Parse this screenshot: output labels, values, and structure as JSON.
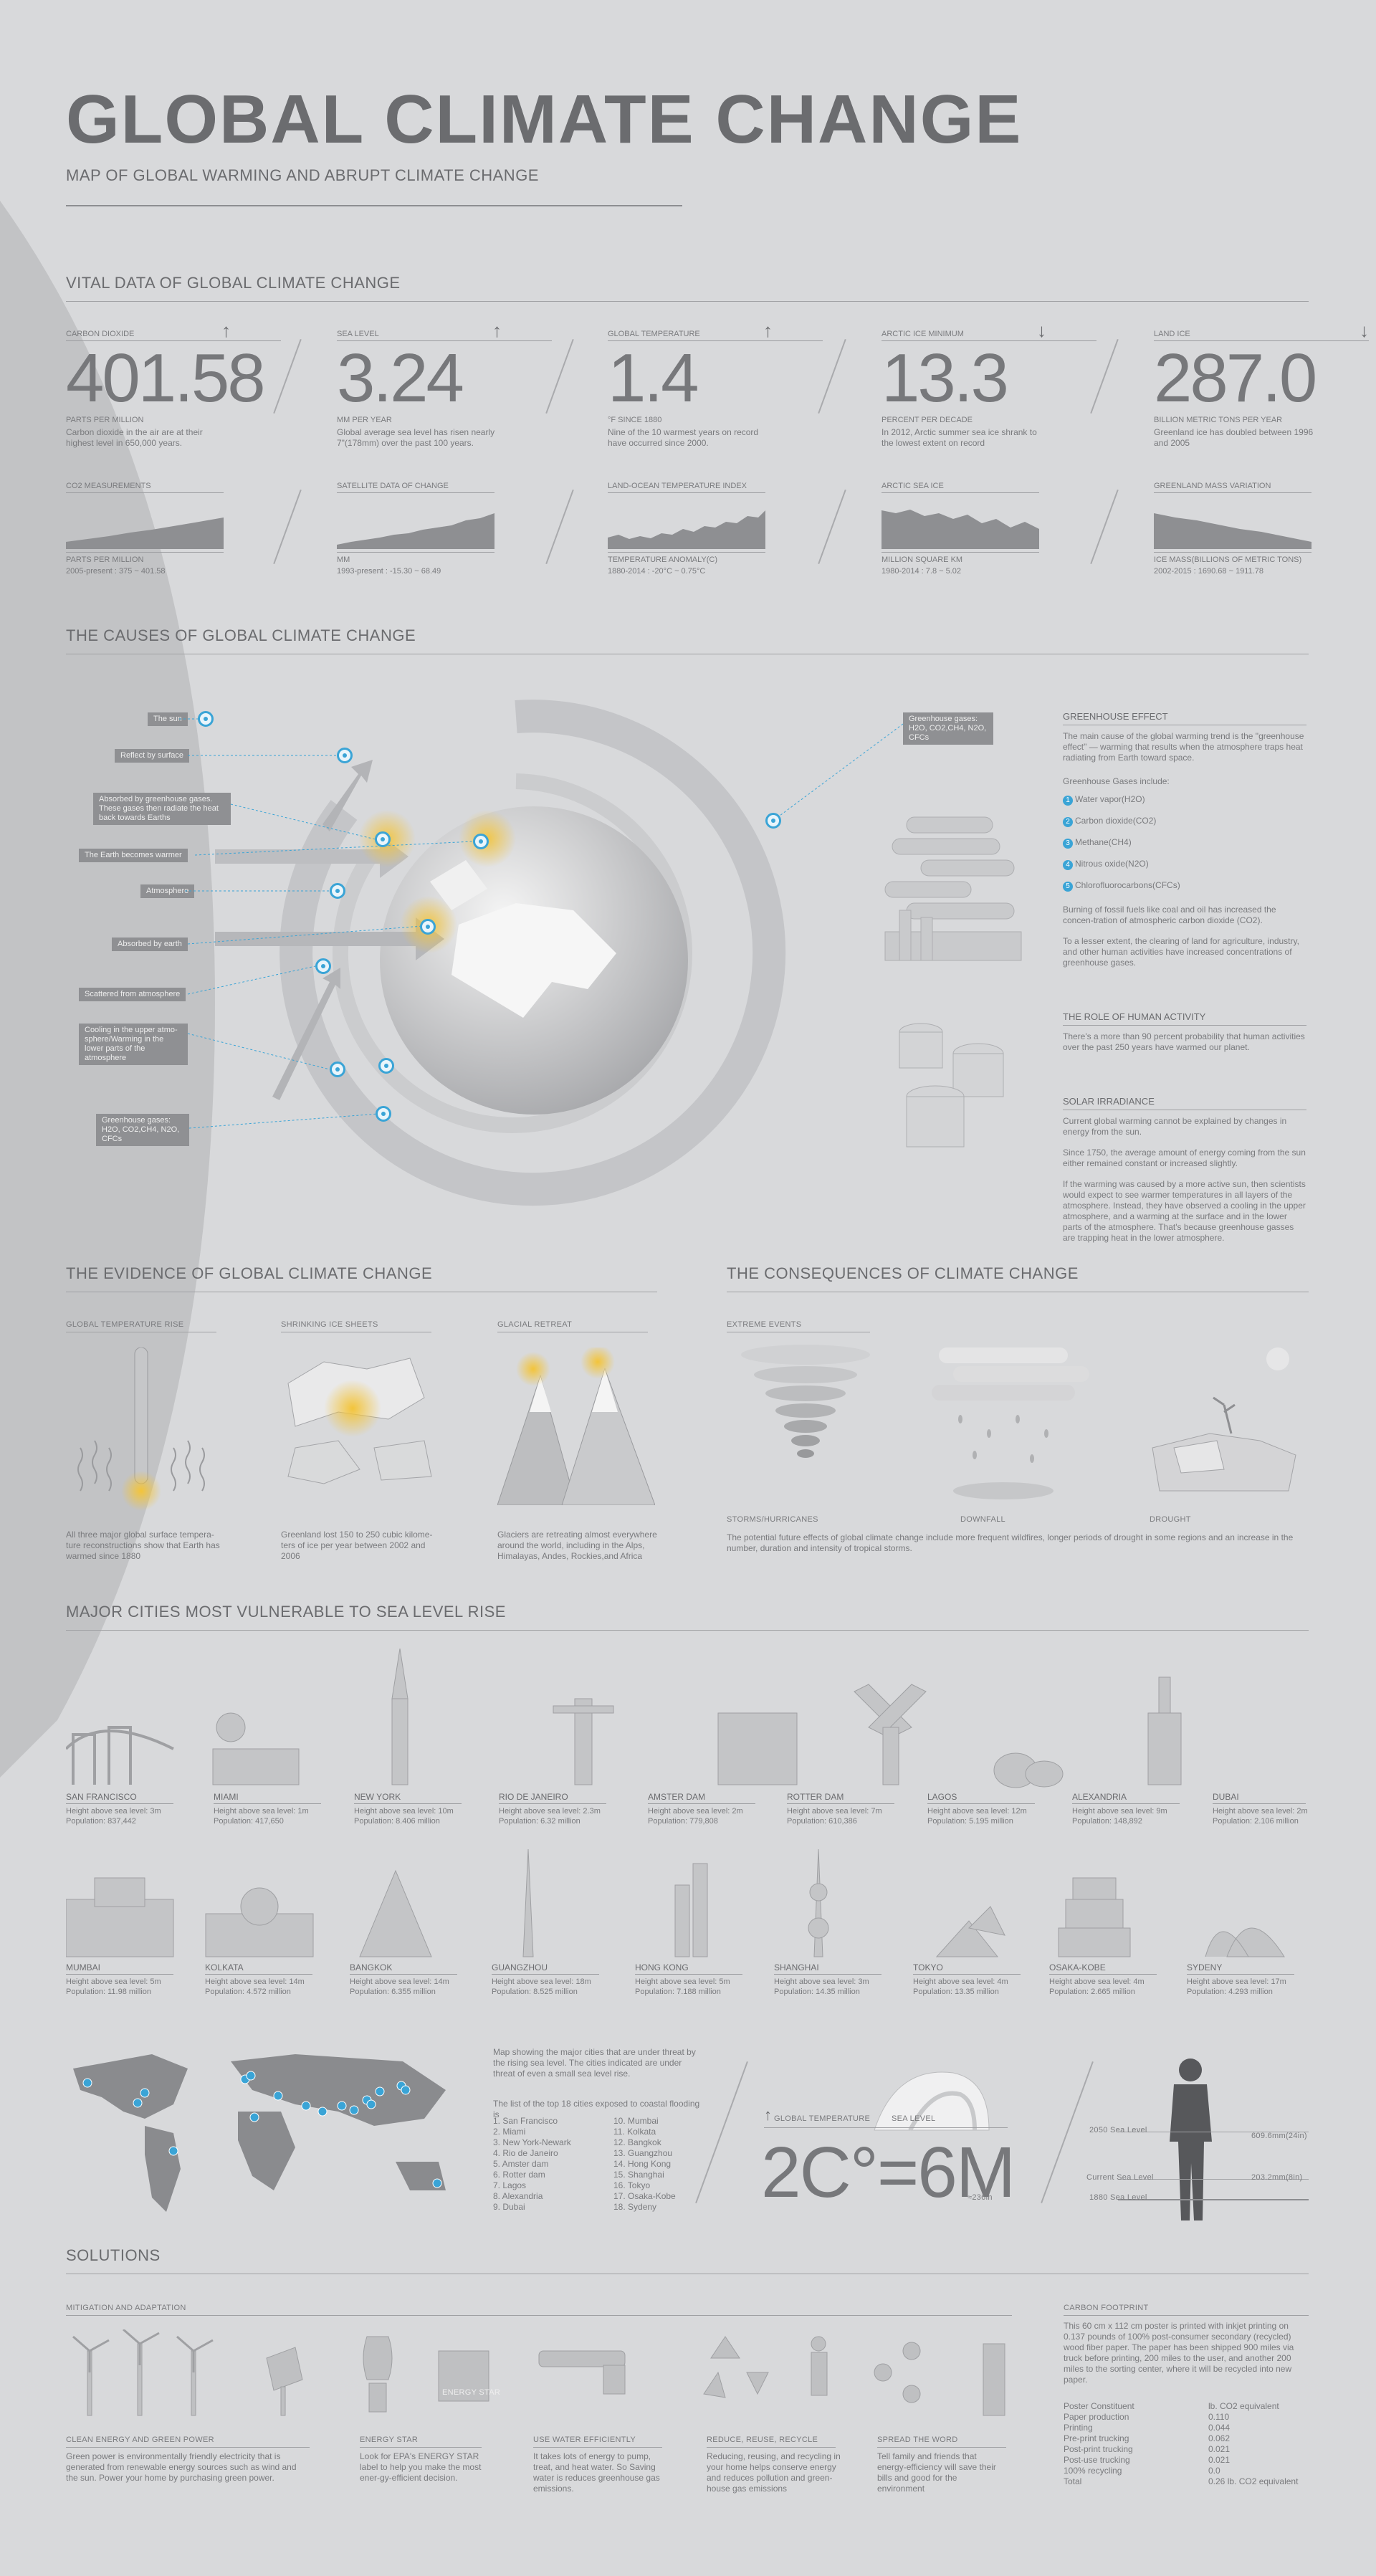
{
  "header": {
    "title": "GLOBAL CLIMATE CHANGE",
    "subtitle": "MAP OF GLOBAL WARMING AND ABRUPT CLIMATE CHANGE"
  },
  "vital": {
    "section_title": "VITAL DATA OF GLOBAL CLIMATE CHANGE",
    "items": [
      {
        "key": "CARBON DIOXIDE",
        "value": "401.58",
        "unit": "PARTS PER MILLION",
        "desc": "Carbon dioxide in the air are at their highest level in 650,000 years.",
        "trend": "up"
      },
      {
        "key": "SEA LEVEL",
        "value": "3.24",
        "unit": "MM PER YEAR",
        "desc": "Global average sea level has risen nearly 7\"(178mm) over the past 100 years.",
        "trend": "up"
      },
      {
        "key": "GLOBAL TEMPERATURE",
        "value": "1.4",
        "unit": "°F SINCE 1880",
        "desc": "Nine of the 10 warmest years on record have occurred since 2000.",
        "trend": "up"
      },
      {
        "key": "ARCTIC ICE MINIMUM",
        "value": "13.3",
        "unit": "PERCENT PER DECADE",
        "desc": "In 2012, Arctic summer sea ice shrank to the lowest extent on record",
        "trend": "down"
      },
      {
        "key": "LAND ICE",
        "value": "287.0",
        "unit": "BILLION METRIC TONS PER YEAR",
        "desc": "Greenland ice has doubled between 1996 and 2005",
        "trend": "down"
      }
    ],
    "charts": [
      {
        "key": "CO2 MEASUREMENTS",
        "unit": "PARTS PER MILLION",
        "range": "2005-present : 375 ~ 401.58"
      },
      {
        "key": "SATELLITE DATA OF CHANGE",
        "unit": "MM",
        "range": "1993-present : -15.30 ~ 68.49"
      },
      {
        "key": "LAND-OCEAN TEMPERATURE INDEX",
        "unit": "TEMPERATURE ANOMALY(C)",
        "range": "1880-2014 : -20°C ~ 0.75°C"
      },
      {
        "key": "ARCTIC SEA ICE",
        "unit": "MILLION SQUARE KM",
        "range": "1980-2014 : 7.8 ~ 5.02"
      },
      {
        "key": "GREENLAND MASS VARIATION",
        "unit": "ICE MASS(BILLIONS OF METRIC TONS)",
        "range": "2002-2015 : 1690.68 ~ 1911.78"
      }
    ]
  },
  "causes": {
    "section_title": "THE CAUSES OF GLOBAL CLIMATE CHANGE",
    "labels": [
      "The sun",
      "Reflect by surface",
      "Absorbed by greenhouse gases. These gases then radiate the heat back towards Earths",
      "The Earth becomes warmer",
      "Atmosphere",
      "Absorbed by earth",
      "Scattered from atmosphere",
      "Cooling in the upper atmo-sphere/Warming in the lower parts of the atmosphere",
      "Greenhouse gases: H2O, CO2,CH4, N2O, CFCs"
    ],
    "right_label": "Greenhouse gases: H2O, CO2,CH4, N2O, CFCs",
    "greenhouse_title": "GREENHOUSE EFFECT",
    "greenhouse_text": "The main cause of the global warming trend is the \"greenhouse effect\" — warming that results when the atmosphere traps heat radiating from Earth toward space.",
    "gases_intro": "Greenhouse Gases include:",
    "gases": [
      "Water vapor(H2O)",
      "Carbon dioxide(CO2)",
      "Methane(CH4)",
      "Nitrous oxide(N2O)",
      "Chlorofluorocarbons(CFCs)"
    ],
    "gases_text1": "Burning of fossil fuels like coal and oil has increased the concen-tration of atmospheric carbon dioxide (CO2).",
    "gases_text2": "To a lesser extent, the clearing of land for agriculture, industry, and other human activities have increased concentrations of greenhouse gases.",
    "human_title": "THE ROLE OF HUMAN ACTIVITY",
    "human_text": "There's a more than 90 percent probability that human activities over the past 250 years have warmed our planet.",
    "solar_title": "SOLAR IRRADIANCE",
    "solar_text1": "Current global warming cannot be explained by changes in energy from the sun.",
    "solar_text2": "Since 1750, the average amount of energy coming from the sun either remained constant or increased slightly.",
    "solar_text3": "If the warming was caused by a more active sun, then scientists would expect to see warmer temperatures in all layers of the atmosphere. Instead, they have observed a cooling in the upper atmosphere, and a warming at the surface and in the lower parts of the atmosphere. That's because greenhouse gasses are trapping heat in the lower atmosphere."
  },
  "evidence": {
    "section_title": "THE EVIDENCE OF GLOBAL CLIMATE CHANGE",
    "items": [
      {
        "key": "GLOBAL TEMPERATURE RISE",
        "text": "All three major global surface tempera-ture reconstructions show that Earth has warmed since 1880"
      },
      {
        "key": "SHRINKING ICE SHEETS",
        "text": "Greenland lost 150 to 250 cubic kilome-ters of ice per year between 2002 and 2006"
      },
      {
        "key": "GLACIAL RETREAT",
        "text": "Glaciers are retreating almost everywhere around the world, including in the Alps, Himalayas, Andes, Rockies,and Africa"
      }
    ]
  },
  "consequences": {
    "section_title": "THE CONSEQUENCES OF CLIMATE CHANGE",
    "key": "EXTREME EVENTS",
    "events": [
      "STORMS/HURRICANES",
      "DOWNFALL",
      "DROUGHT"
    ],
    "text": "The potential future effects of global climate change include more frequent wildfires, longer periods of drought in some regions and an increase in the number, duration and intensity of tropical storms."
  },
  "cities": {
    "section_title": "MAJOR CITIES MOST VULNERABLE TO SEA LEVEL RISE",
    "row1": [
      {
        "name": "SAN FRANCISCO",
        "h": "Height above sea level: 3m",
        "p": "Population: 837,442"
      },
      {
        "name": "MIAMI",
        "h": "Height above sea level: 1m",
        "p": "Population: 417,650"
      },
      {
        "name": "NEW YORK",
        "h": "Height above sea level: 10m",
        "p": "Population: 8.406 million"
      },
      {
        "name": "RIO DE JANEIRO",
        "h": "Height above sea level: 2.3m",
        "p": "Population: 6.32 million"
      },
      {
        "name": "AMSTER DAM",
        "h": "Height above sea level: 2m",
        "p": "Population: 779,808"
      },
      {
        "name": "ROTTER DAM",
        "h": "Height above sea level: 7m",
        "p": "Population: 610,386"
      },
      {
        "name": "LAGOS",
        "h": "Height above sea level: 12m",
        "p": "Population: 5.195 million"
      },
      {
        "name": "ALEXANDRIA",
        "h": "Height above sea level: 9m",
        "p": "Population:        148,892"
      },
      {
        "name": "DUBAI",
        "h": "Height above sea level: 2m",
        "p": "Population: 2.106 million"
      }
    ],
    "row2": [
      {
        "name": "MUMBAI",
        "h": "Height above sea level: 5m",
        "p": "Population: 11.98 million"
      },
      {
        "name": "KOLKATA",
        "h": "Height above sea level: 14m",
        "p": "Population: 4.572 million"
      },
      {
        "name": "BANGKOK",
        "h": "Height above sea level: 14m",
        "p": "Population: 6.355 million"
      },
      {
        "name": "GUANGZHOU",
        "h": "Height above sea level: 18m",
        "p": "Population: 8.525 million"
      },
      {
        "name": "HONG KONG",
        "h": "Height above sea level: 5m",
        "p": "Population: 7.188 million"
      },
      {
        "name": "SHANGHAI",
        "h": "Height above sea level: 3m",
        "p": "Population: 14.35 million"
      },
      {
        "name": "TOKYO",
        "h": "Height above sea level: 4m",
        "p": "Population: 13.35 million"
      },
      {
        "name": "OSAKA-KOBE",
        "h": "Height above sea level: 4m",
        "p": "Population: 2.665 million"
      },
      {
        "name": "SYDENY",
        "h": "Height above sea level: 17m",
        "p": "Population: 4.293 million"
      }
    ],
    "map_text": "Map showing the major cities that are under threat by the rising sea level. The cities indicated are under threat of even a small sea level rise.",
    "list_intro": "The list of the top 18 cities exposed to coastal flooding is",
    "list_col1": [
      "1. San Francisco",
      "2. Miami",
      "3. New York-Newark",
      "4. Rio de Janeiro",
      "5. Amster dam",
      "6. Rotter dam",
      "7. Lagos",
      "8. Alexandria",
      "9. Dubai"
    ],
    "list_col2": [
      "10. Mumbai",
      "11. Kolkata",
      "12. Bangkok",
      "13. Guangzhou",
      "14. Hong Kong",
      "15. Shanghai",
      "16. Tokyo",
      "17. Osaka-Kobe",
      "18. Sydeny"
    ],
    "temp_label": "GLOBAL TEMPERATURE",
    "sea_label": "SEA LEVEL",
    "equation": "2C°=6M",
    "eq_sub": "≈236in",
    "levels": [
      {
        "left": "2050 Sea Level",
        "right": "609.6mm(24in)"
      },
      {
        "left": "Current Sea Level",
        "right": "203.2mm(8in)"
      },
      {
        "left": "1880 Sea Level",
        "right": ""
      }
    ]
  },
  "solutions": {
    "section_title": "SOLUTIONS",
    "mitigation": "MITIGATION AND ADAPTATION",
    "items": [
      {
        "key": "CLEAN ENERGY AND GREEN POWER",
        "text": "Green power is environmentally friendly electricity that is generated from renewable energy sources such as wind and the sun. Power your home by purchasing green power."
      },
      {
        "key": "ENERGY STAR",
        "text": "Look for EPA's ENERGY STAR label to help you make the most ener-gy-efficient decision."
      },
      {
        "key": "USE WATER EFFICIENTLY",
        "text": "It takes lots of energy to pump, treat, and heat water. So Saving water is reduces greenhouse gas emissions."
      },
      {
        "key": "REDUCE, REUSE, RECYCLE",
        "text": "Reducing, reusing, and recycling in your home helps conserve energy and reduces pollution and green-house gas emissions"
      },
      {
        "key": "SPREAD THE WORD",
        "text": "Tell family and friends that energy-efficiency will save their bills and good for the environment"
      }
    ],
    "energy_star_badge": "ENERGY STAR",
    "footprint_title": "CARBON FOOTPRINT",
    "footprint_text": "This 60 cm x 112 cm poster is printed with inkjet printing on 0.137 pounds of 100% post-consumer secondary (recycled) wood fiber paper. The paper has been shipped 900 miles via truck before printing, 200 miles to the user, and another 200 miles to the sorting center, where it will be recycled into new paper.",
    "footprint_header_right": "lb. CO2 equivalent",
    "footprint_rows": [
      {
        "k": "Poster Constituent",
        "v": "lb. CO2 equivalent"
      },
      {
        "k": "Paper production",
        "v": "0.110"
      },
      {
        "k": "Printing",
        "v": "0.044"
      },
      {
        "k": "Pre-print trucking",
        "v": "0.062"
      },
      {
        "k": "Post-print trucking",
        "v": "0.021"
      },
      {
        "k": "Post-use trucking",
        "v": "0.021"
      },
      {
        "k": "100% recycling",
        "v": "0.0"
      },
      {
        "k": "Total",
        "v": "0.26 lb. CO2 equivalent"
      }
    ]
  },
  "colors": {
    "accent": "#3aa4d6",
    "background": "#d8d9db",
    "text": "#6f7073",
    "glow": "#f3c43a"
  }
}
